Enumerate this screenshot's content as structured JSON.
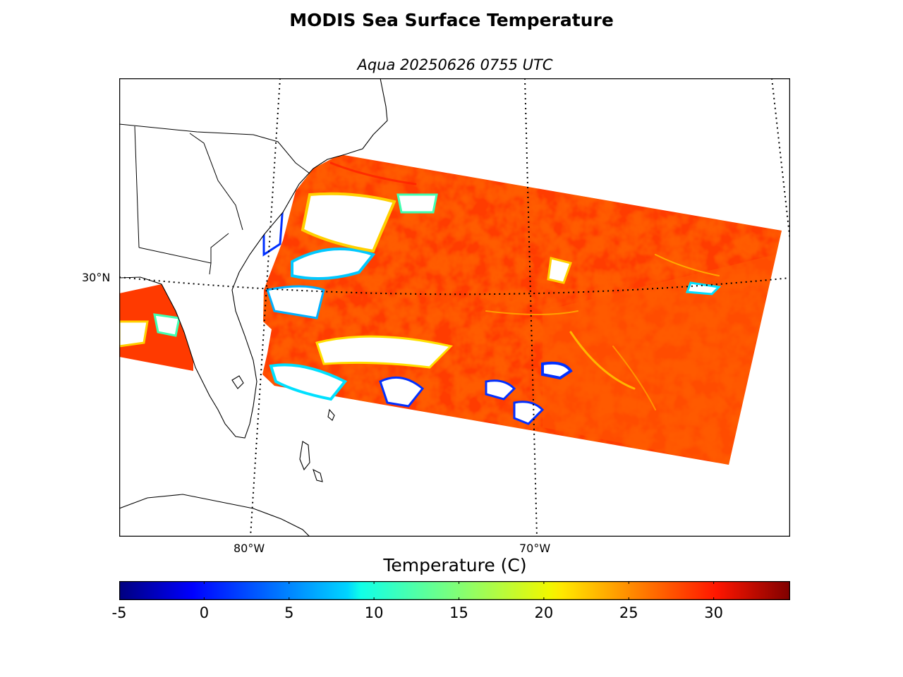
{
  "title": "MODIS Sea Surface Temperature",
  "subtitle": "Aqua 20250626 0755 UTC",
  "map": {
    "lat_labels": [
      "30°N"
    ],
    "lon_labels": [
      "80°W",
      "70°W"
    ],
    "land_color": "#ffffff",
    "coast_color": "#000000",
    "gridline_style": "dotted"
  },
  "colorbar": {
    "label": "Temperature (C)",
    "colormap": "jet",
    "min": -5,
    "max": 34.5,
    "ticks": [
      "-5",
      "0",
      "5",
      "10",
      "15",
      "20",
      "25",
      "30"
    ]
  },
  "colors": {
    "warm": "#ff3a00",
    "hot": "#ff2000",
    "mid": "#ff8a00",
    "cool": "#ffd000",
    "cold": "#0030ff",
    "cloud": "#ffffff"
  }
}
